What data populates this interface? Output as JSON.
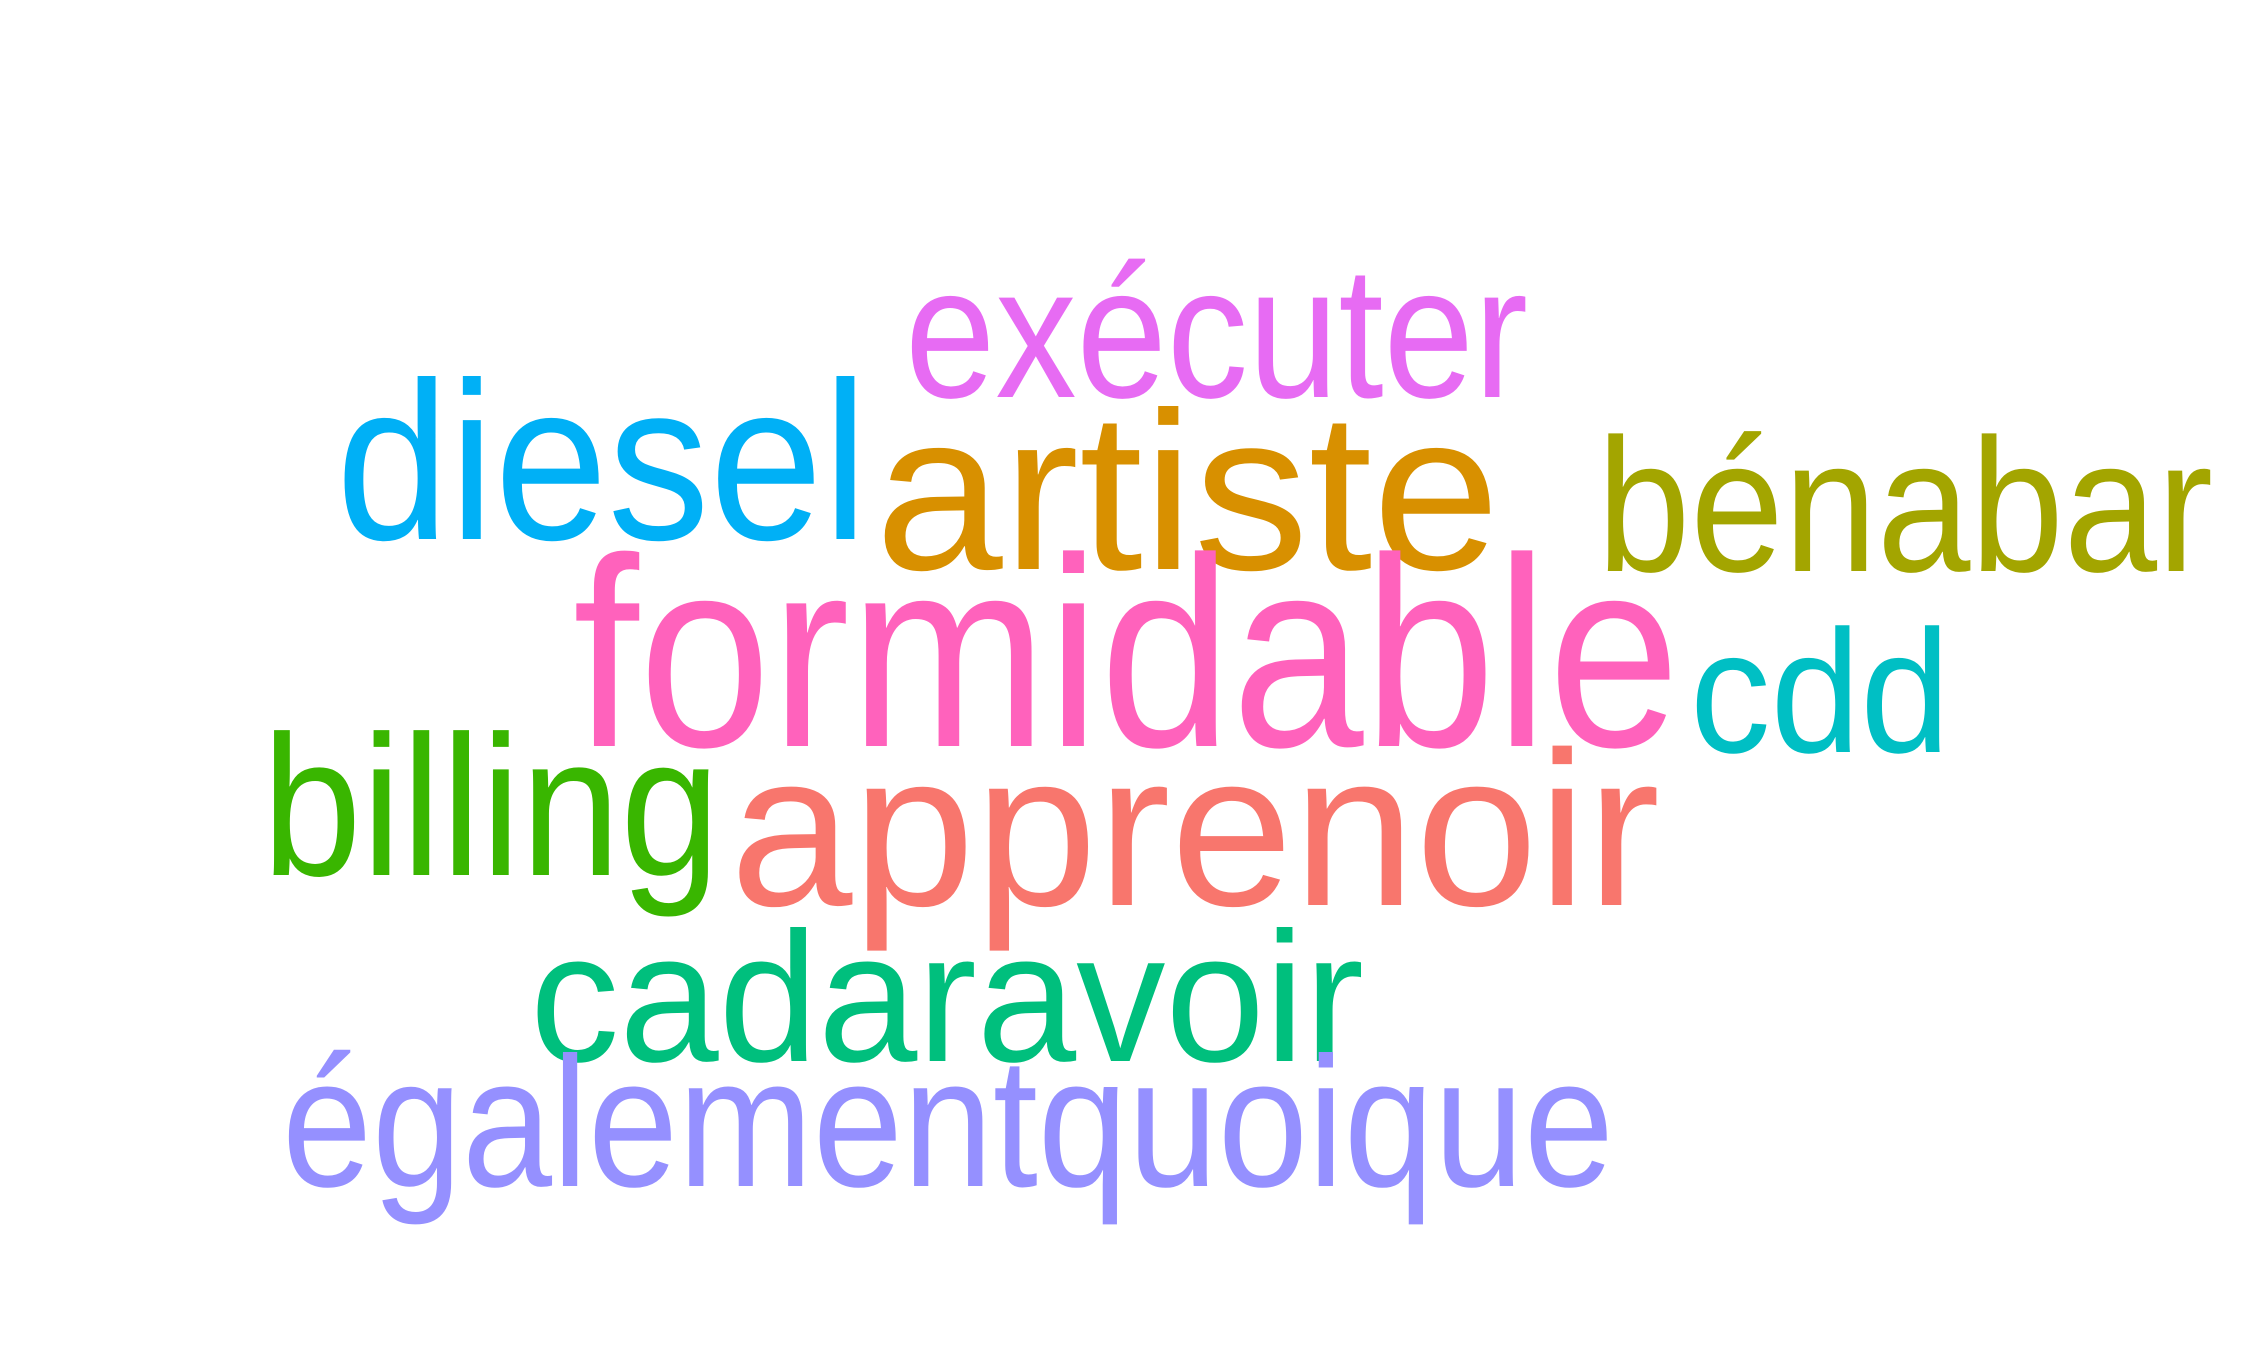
{
  "words": [
    {
      "id": "executer",
      "text": "exécuter",
      "color": "#E76BF3"
    },
    {
      "id": "diesel",
      "text": "diesel",
      "color": "#00B0F6"
    },
    {
      "id": "artiste",
      "text": "artiste",
      "color": "#D89000"
    },
    {
      "id": "benabar",
      "text": "bénabar",
      "color": "#A3A500"
    },
    {
      "id": "formidable",
      "text": "formidable",
      "color": "#FF62BC"
    },
    {
      "id": "cdd",
      "text": "cdd",
      "color": "#00BFC4"
    },
    {
      "id": "billing",
      "text": "billing",
      "color": "#39B600"
    },
    {
      "id": "apprenoir",
      "text": "apprenoir",
      "color": "#F8766D"
    },
    {
      "id": "cadaravoir",
      "text": "cadaravoir",
      "color": "#00BF7D"
    },
    {
      "id": "egalementquoique",
      "text": "égalementquoique",
      "color": "#9590FF"
    }
  ]
}
